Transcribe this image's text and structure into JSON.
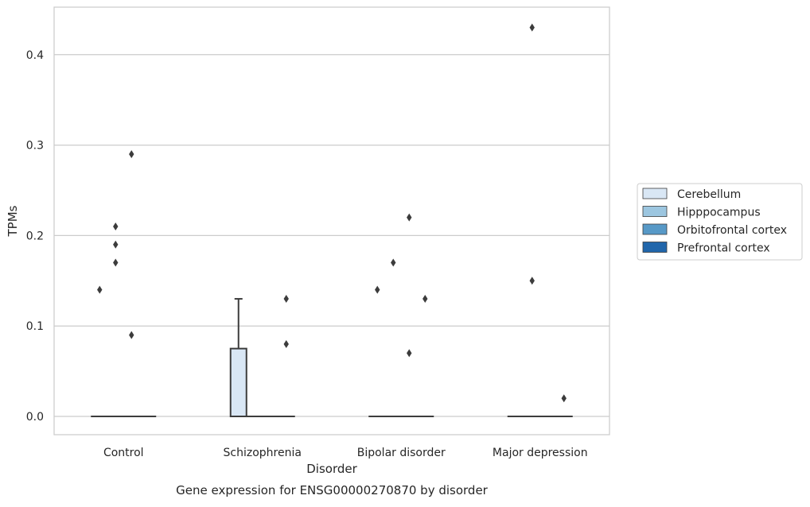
{
  "chart_data": {
    "type": "box",
    "title": "Gene expression for ENSG00000270870 by disorder",
    "xlabel": "Disorder",
    "ylabel": "TPMs",
    "ylim": [
      -0.021,
      0.452
    ],
    "yticks": [
      0.0,
      0.1,
      0.2,
      0.3,
      0.4
    ],
    "ytick_labels": [
      "0.0",
      "0.1",
      "0.2",
      "0.3",
      "0.4"
    ],
    "categories": [
      "Control",
      "Schizophrenia",
      "Bipolar disorder",
      "Major depression"
    ],
    "grid": "horizontal",
    "legend_position": "right",
    "series": [
      {
        "name": "Cerebellum",
        "color": "#d9e7f5",
        "boxes": [
          {
            "q1": 0.0,
            "median": 0.0,
            "q3": 0.0,
            "whisker_low": 0.0,
            "whisker_high": 0.0,
            "outliers": [
              0.14
            ]
          },
          {
            "q1": 0.0,
            "median": 0.0,
            "q3": 0.075,
            "whisker_low": 0.0,
            "whisker_high": 0.13,
            "outliers": []
          },
          {
            "q1": 0.0,
            "median": 0.0,
            "q3": 0.0,
            "whisker_low": 0.0,
            "whisker_high": 0.0,
            "outliers": [
              0.14
            ]
          },
          {
            "q1": 0.0,
            "median": 0.0,
            "q3": 0.0,
            "whisker_low": 0.0,
            "whisker_high": 0.0,
            "outliers": []
          }
        ]
      },
      {
        "name": "Hipppocampus",
        "color": "#9cc6e0",
        "boxes": [
          {
            "q1": 0.0,
            "median": 0.0,
            "q3": 0.0,
            "whisker_low": 0.0,
            "whisker_high": 0.0,
            "outliers": [
              0.17,
              0.19,
              0.21
            ]
          },
          {
            "q1": 0.0,
            "median": 0.0,
            "q3": 0.0,
            "whisker_low": 0.0,
            "whisker_high": 0.0,
            "outliers": []
          },
          {
            "q1": 0.0,
            "median": 0.0,
            "q3": 0.0,
            "whisker_low": 0.0,
            "whisker_high": 0.0,
            "outliers": [
              0.17
            ]
          },
          {
            "q1": 0.0,
            "median": 0.0,
            "q3": 0.0,
            "whisker_low": 0.0,
            "whisker_high": 0.0,
            "outliers": [
              0.43,
              0.15
            ]
          }
        ]
      },
      {
        "name": "Orbitofrontal cortex",
        "color": "#5799c7",
        "boxes": [
          {
            "q1": 0.0,
            "median": 0.0,
            "q3": 0.0,
            "whisker_low": 0.0,
            "whisker_high": 0.0,
            "outliers": [
              0.29,
              0.09
            ]
          },
          {
            "q1": 0.0,
            "median": 0.0,
            "q3": 0.0,
            "whisker_low": 0.0,
            "whisker_high": 0.0,
            "outliers": []
          },
          {
            "q1": 0.0,
            "median": 0.0,
            "q3": 0.0,
            "whisker_low": 0.0,
            "whisker_high": 0.0,
            "outliers": [
              0.22,
              0.07
            ]
          },
          {
            "q1": 0.0,
            "median": 0.0,
            "q3": 0.0,
            "whisker_low": 0.0,
            "whisker_high": 0.0,
            "outliers": []
          }
        ]
      },
      {
        "name": "Prefrontal cortex",
        "color": "#2166ab",
        "boxes": [
          {
            "q1": 0.0,
            "median": 0.0,
            "q3": 0.0,
            "whisker_low": 0.0,
            "whisker_high": 0.0,
            "outliers": []
          },
          {
            "q1": 0.0,
            "median": 0.0,
            "q3": 0.0,
            "whisker_low": 0.0,
            "whisker_high": 0.0,
            "outliers": [
              0.13,
              0.08
            ]
          },
          {
            "q1": 0.0,
            "median": 0.0,
            "q3": 0.0,
            "whisker_low": 0.0,
            "whisker_high": 0.0,
            "outliers": [
              0.13
            ]
          },
          {
            "q1": 0.0,
            "median": 0.0,
            "q3": 0.0,
            "whisker_low": 0.0,
            "whisker_high": 0.0,
            "outliers": [
              0.02
            ]
          }
        ]
      }
    ]
  }
}
